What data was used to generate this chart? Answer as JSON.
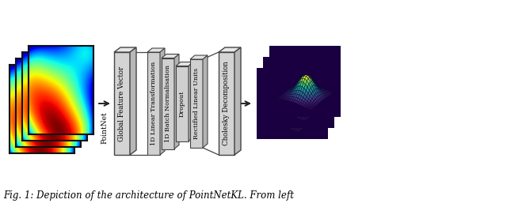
{
  "title": "Fig. 1: Depiction of the architecture of PointNetKL. From left",
  "bg_color": "#ffffff",
  "box_face_light": "#d8d8d8",
  "box_face_mid": "#c0c0c0",
  "box_face_dark": "#a0a0a0",
  "box_edge": "#444444",
  "arrow_color": "#222222",
  "text_color": "#000000",
  "pointnet_label": "PointNet",
  "global_feature_label": "Global Feature Vector",
  "layer_labels": [
    "1D Linear Transformation",
    "1D Batch Normalisation",
    "Dropout",
    "Rectified Linear Units"
  ],
  "cholesky_label": "Cholesky Decomposition",
  "heatmap_cmap": "jet",
  "surface_cmap": "viridis",
  "surface_bg": "#1a0040",
  "n_heatmaps": 4,
  "n_surface_panels": 3,
  "fig_width": 6.4,
  "fig_height": 2.62,
  "dpi": 100
}
